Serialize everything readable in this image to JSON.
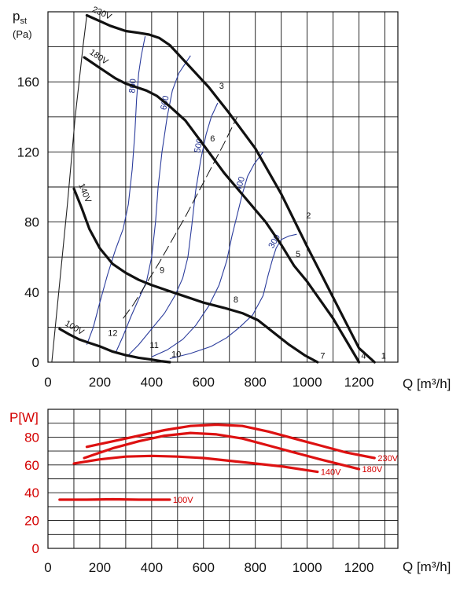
{
  "chart_data": [
    {
      "type": "line",
      "ylabel_main": "p",
      "ylabel_sub": "st",
      "ylabel_unit": "(Pa)",
      "xlabel": "Q [m³/h]",
      "xlim": [
        0,
        1350
      ],
      "ylim": [
        0,
        200
      ],
      "xticks": [
        0,
        200,
        400,
        600,
        800,
        1000,
        1200
      ],
      "yticks": [
        0,
        40,
        80,
        120,
        160
      ],
      "grid": true,
      "series": [
        {
          "name": "230V",
          "x": [
            150,
            240,
            300,
            350,
            390,
            430,
            470,
            520,
            570,
            620,
            700,
            800,
            900,
            1000,
            1100,
            1200,
            1260
          ],
          "y": [
            198,
            192,
            189,
            188,
            187,
            185,
            181,
            173,
            165,
            157,
            142,
            122,
            96,
            66,
            37,
            8,
            0
          ]
        },
        {
          "name": "180V",
          "x": [
            140,
            200,
            260,
            300,
            340,
            380,
            420,
            470,
            530,
            600,
            680,
            760,
            840,
            900,
            950,
            1000,
            1100,
            1200
          ],
          "y": [
            174,
            168,
            162,
            159,
            157,
            155,
            152,
            146,
            138,
            124,
            108,
            94,
            80,
            67,
            55,
            46,
            25,
            0
          ]
        },
        {
          "name": "140V",
          "x": [
            100,
            130,
            160,
            200,
            250,
            300,
            350,
            400,
            460,
            520,
            600,
            680,
            750,
            810,
            870,
            930,
            990,
            1040
          ],
          "y": [
            99,
            88,
            76,
            65,
            56,
            51,
            47,
            44,
            41,
            38,
            34,
            31,
            28,
            24,
            17,
            10,
            4,
            0
          ]
        },
        {
          "name": "100V",
          "x": [
            45,
            80,
            120,
            160,
            200,
            250,
            300,
            350,
            400,
            440,
            470
          ],
          "y": [
            19,
            16,
            13,
            11,
            9,
            6,
            4,
            2.5,
            1.5,
            0.5,
            0
          ]
        }
      ],
      "rpm_lines": [
        {
          "label": "800",
          "x": [
            150,
            175,
            200,
            230,
            260,
            290,
            310,
            325,
            335,
            342,
            350,
            360,
            375
          ],
          "y": [
            10,
            20,
            34,
            50,
            64,
            76,
            90,
            110,
            130,
            150,
            165,
            175,
            186
          ]
        },
        {
          "label": "600",
          "x": [
            260,
            290,
            320,
            350,
            380,
            400,
            415,
            425,
            440,
            460,
            480,
            505,
            550
          ],
          "y": [
            5,
            15,
            26,
            36,
            46,
            60,
            80,
            100,
            120,
            140,
            155,
            165,
            175
          ]
        },
        {
          "label": "500",
          "x": [
            310,
            350,
            400,
            450,
            490,
            520,
            540,
            555,
            570,
            590,
            610,
            630,
            655
          ],
          "y": [
            4,
            10,
            19,
            28,
            38,
            48,
            60,
            78,
            98,
            116,
            130,
            140,
            148
          ]
        },
        {
          "label": "400",
          "x": [
            400,
            460,
            520,
            570,
            620,
            660,
            690,
            710,
            730,
            750,
            770,
            795,
            830
          ],
          "y": [
            3,
            7,
            13,
            21,
            32,
            44,
            58,
            72,
            84,
            96,
            106,
            113,
            120
          ]
        },
        {
          "label": "300",
          "x": [
            470,
            550,
            630,
            690,
            740,
            790,
            830,
            850,
            865,
            880,
            900,
            930,
            960
          ],
          "y": [
            2,
            5,
            9,
            14,
            20,
            27,
            38,
            50,
            58,
            65,
            70,
            72,
            73
          ]
        },
        {
          "label": "",
          "x": [
            15,
            35,
            55,
            75,
            90,
            105,
            120,
            135,
            150
          ],
          "y": [
            0,
            30,
            60,
            90,
            115,
            140,
            160,
            180,
            198
          ]
        }
      ],
      "dashed_line": {
        "x": [
          290,
          330,
          380,
          430,
          480,
          530,
          580,
          630,
          680,
          730
        ],
        "y": [
          25,
          33,
          45,
          57,
          70,
          83,
          97,
          111,
          125,
          140
        ]
      },
      "point_labels": [
        {
          "text": "1",
          "x": 1295,
          "y": 2
        },
        {
          "text": "2",
          "x": 1005,
          "y": 82
        },
        {
          "text": "3",
          "x": 670,
          "y": 156
        },
        {
          "text": "4",
          "x": 1218,
          "y": 2
        },
        {
          "text": "5",
          "x": 965,
          "y": 60
        },
        {
          "text": "6",
          "x": 635,
          "y": 126
        },
        {
          "text": "7",
          "x": 1060,
          "y": 2
        },
        {
          "text": "8",
          "x": 725,
          "y": 34
        },
        {
          "text": "9",
          "x": 440,
          "y": 51
        },
        {
          "text": "10",
          "x": 495,
          "y": 3
        },
        {
          "text": "11",
          "x": 410,
          "y": 8
        },
        {
          "text": "12",
          "x": 250,
          "y": 15
        }
      ]
    },
    {
      "type": "line",
      "ylabel": "P[W]",
      "xlabel": "Q [m³/h]",
      "xlim": [
        0,
        1350
      ],
      "ylim": [
        0,
        100
      ],
      "xticks": [
        0,
        200,
        400,
        600,
        800,
        1000,
        1200
      ],
      "yticks": [
        0,
        20,
        40,
        60,
        80
      ],
      "grid": true,
      "series": [
        {
          "name": "230V",
          "x": [
            150,
            300,
            450,
            550,
            650,
            750,
            850,
            950,
            1050,
            1150,
            1260
          ],
          "y": [
            73,
            79,
            85,
            88,
            89,
            88,
            84,
            79,
            74,
            69,
            65
          ]
        },
        {
          "name": "180V",
          "x": [
            140,
            250,
            350,
            450,
            550,
            650,
            750,
            850,
            950,
            1050,
            1200
          ],
          "y": [
            65,
            72,
            77,
            81,
            83,
            82,
            79,
            74,
            69,
            64,
            57
          ]
        },
        {
          "name": "140V",
          "x": [
            100,
            200,
            300,
            400,
            500,
            600,
            700,
            800,
            900,
            1040
          ],
          "y": [
            61,
            64,
            66,
            66.5,
            66,
            65,
            63,
            61,
            59,
            55
          ]
        },
        {
          "name": "100V",
          "x": [
            45,
            150,
            250,
            350,
            470
          ],
          "y": [
            35,
            35,
            35.3,
            35,
            35
          ]
        }
      ]
    }
  ]
}
